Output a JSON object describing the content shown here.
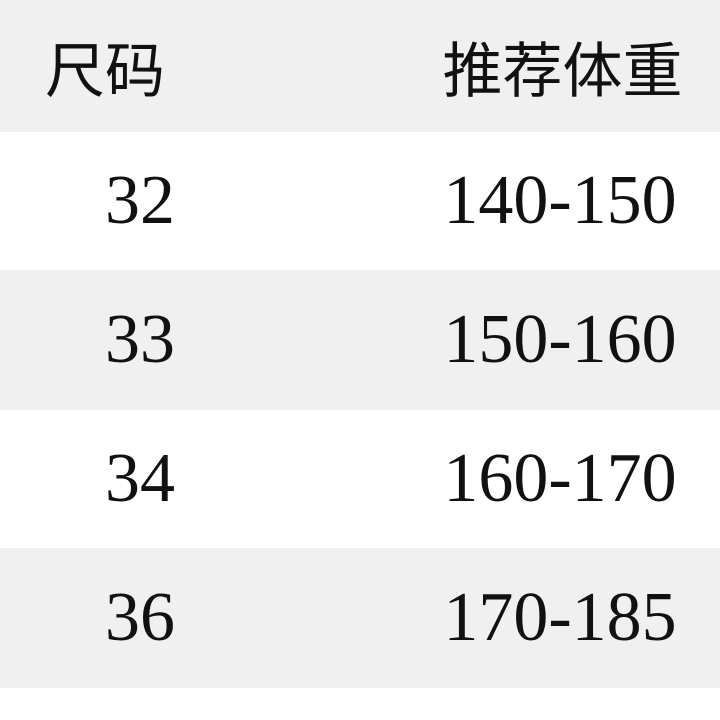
{
  "table": {
    "headers": [
      "尺码",
      "推荐体重"
    ],
    "rows": [
      {
        "size": "32",
        "weight": "140-150"
      },
      {
        "size": "33",
        "weight": "150-160"
      },
      {
        "size": "34",
        "weight": "160-170"
      },
      {
        "size": "36",
        "weight": "170-185"
      }
    ]
  },
  "colors": {
    "stripe": "#f0f0f0",
    "background": "#ffffff",
    "text": "#111111"
  }
}
